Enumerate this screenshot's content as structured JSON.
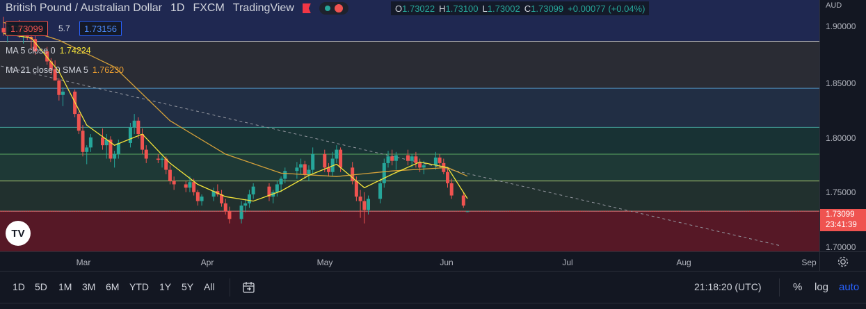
{
  "header": {
    "symbol": "British Pound / Australian Dollar",
    "interval": "1D",
    "exchange": "FXCM",
    "source": "TradingView",
    "flag_icon": "flag-icon"
  },
  "ohlc": {
    "open_label": "O",
    "open": "1.73022",
    "high_label": "H",
    "high": "1.73100",
    "low_label": "L",
    "low": "1.73002",
    "close_label": "C",
    "close": "1.73099",
    "change": "+0.00077 (+0.04%)"
  },
  "trade": {
    "sell": "1.73099",
    "spread": "5.7",
    "buy": "1.73156"
  },
  "indicators": {
    "ma5_label": "MA 5 close 0",
    "ma5_value": "1.74224",
    "ma21_label": "MA 21 close 0 SMA 5",
    "ma21_value": "1.76230"
  },
  "price_axis": {
    "unit": "AUD",
    "ticks": [
      "1.90000",
      "1.85000",
      "1.80000",
      "1.75000",
      "1.70000"
    ],
    "last_price": "1.73099",
    "countdown": "23:41:39"
  },
  "time_axis": {
    "ticks": [
      "Mar",
      "Apr",
      "May",
      "Jun",
      "Jul",
      "Aug",
      "Sep"
    ]
  },
  "bottom_bar": {
    "ranges": [
      "1D",
      "5D",
      "1M",
      "3M",
      "6M",
      "YTD",
      "1Y",
      "5Y",
      "All"
    ],
    "clock": "21:18:20 (UTC)",
    "percent": "%",
    "log": "log",
    "auto": "auto"
  },
  "logo": "TV",
  "colors": {
    "up": "#26a69a",
    "down": "#ef5350",
    "ma5": "#f5e53a",
    "ma21": "#d4a03a",
    "accent": "#2962ff"
  },
  "chart_data": {
    "type": "candlestick",
    "ylim": [
      1.695,
      1.92
    ],
    "x_range": [
      "2022-02-10",
      "2022-09-02"
    ],
    "horizontal_levels": [
      1.883,
      1.841,
      1.806,
      1.782,
      1.758,
      1.731
    ],
    "trendline": {
      "from": [
        "2022-02-08",
        1.862
      ],
      "to": [
        "2022-08-25",
        1.7
      ]
    },
    "candles": [
      [
        "2022-02-10",
        1.895,
        1.905,
        1.888,
        1.891
      ],
      [
        "2022-02-11",
        1.891,
        1.9,
        1.882,
        1.896
      ],
      [
        "2022-02-14",
        1.896,
        1.902,
        1.886,
        1.889
      ],
      [
        "2022-02-15",
        1.889,
        1.895,
        1.881,
        1.892
      ],
      [
        "2022-02-16",
        1.892,
        1.898,
        1.884,
        1.887
      ],
      [
        "2022-02-17",
        1.887,
        1.891,
        1.876,
        1.885
      ],
      [
        "2022-02-18",
        1.885,
        1.888,
        1.871,
        1.874
      ],
      [
        "2022-02-21",
        1.874,
        1.878,
        1.862,
        1.865
      ],
      [
        "2022-02-22",
        1.865,
        1.868,
        1.853,
        1.858
      ],
      [
        "2022-02-23",
        1.858,
        1.866,
        1.85,
        1.848
      ],
      [
        "2022-02-24",
        1.848,
        1.85,
        1.83,
        1.835
      ],
      [
        "2022-02-25",
        1.835,
        1.842,
        1.825,
        1.838
      ],
      [
        "2022-02-28",
        1.838,
        1.84,
        1.815,
        1.818
      ],
      [
        "2022-03-01",
        1.818,
        1.82,
        1.8,
        1.803
      ],
      [
        "2022-03-02",
        1.803,
        1.808,
        1.78,
        1.784
      ],
      [
        "2022-03-03",
        1.784,
        1.79,
        1.773,
        1.788
      ],
      [
        "2022-03-04",
        1.788,
        1.8,
        1.784,
        1.797
      ],
      [
        "2022-03-07",
        1.797,
        1.805,
        1.786,
        1.79
      ],
      [
        "2022-03-08",
        1.79,
        1.8,
        1.778,
        1.795
      ],
      [
        "2022-03-09",
        1.795,
        1.798,
        1.775,
        1.778
      ],
      [
        "2022-03-10",
        1.778,
        1.785,
        1.77,
        1.782
      ],
      [
        "2022-03-11",
        1.782,
        1.795,
        1.778,
        1.792
      ],
      [
        "2022-03-14",
        1.792,
        1.81,
        1.788,
        1.806
      ],
      [
        "2022-03-15",
        1.806,
        1.818,
        1.8,
        1.812
      ],
      [
        "2022-03-16",
        1.812,
        1.815,
        1.796,
        1.8
      ],
      [
        "2022-03-17",
        1.8,
        1.805,
        1.782,
        1.786
      ],
      [
        "2022-03-18",
        1.786,
        1.79,
        1.774,
        1.778
      ],
      [
        "2022-03-21",
        1.778,
        1.782,
        1.774,
        1.777
      ],
      [
        "2022-03-22",
        1.777,
        1.78,
        1.77,
        1.778
      ],
      [
        "2022-03-23",
        1.778,
        1.78,
        1.764,
        1.768
      ],
      [
        "2022-03-24",
        1.768,
        1.772,
        1.755,
        1.758
      ],
      [
        "2022-03-25",
        1.758,
        1.762,
        1.75,
        1.755
      ],
      [
        "2022-03-28",
        1.755,
        1.758,
        1.748,
        1.752
      ],
      [
        "2022-03-29",
        1.752,
        1.762,
        1.748,
        1.757
      ],
      [
        "2022-03-30",
        1.757,
        1.76,
        1.745,
        1.748
      ],
      [
        "2022-03-31",
        1.748,
        1.75,
        1.736,
        1.74
      ],
      [
        "2022-04-01",
        1.74,
        1.746,
        1.736,
        1.744
      ],
      [
        "2022-04-04",
        1.744,
        1.752,
        1.74,
        1.749
      ],
      [
        "2022-04-05",
        1.749,
        1.755,
        1.744,
        1.746
      ],
      [
        "2022-04-06",
        1.746,
        1.75,
        1.735,
        1.738
      ],
      [
        "2022-04-07",
        1.738,
        1.742,
        1.728,
        1.731
      ],
      [
        "2022-04-08",
        1.731,
        1.735,
        1.72,
        1.724
      ],
      [
        "2022-04-11",
        1.724,
        1.74,
        1.72,
        1.736
      ],
      [
        "2022-04-12",
        1.736,
        1.742,
        1.73,
        1.738
      ],
      [
        "2022-04-13",
        1.738,
        1.75,
        1.734,
        1.746
      ],
      [
        "2022-04-14",
        1.746,
        1.756,
        1.742,
        1.753
      ],
      [
        "2022-04-18",
        1.753,
        1.756,
        1.74,
        1.744
      ],
      [
        "2022-04-19",
        1.744,
        1.75,
        1.738,
        1.748
      ],
      [
        "2022-04-20",
        1.748,
        1.758,
        1.744,
        1.755
      ],
      [
        "2022-04-21",
        1.755,
        1.762,
        1.748,
        1.76
      ],
      [
        "2022-04-22",
        1.76,
        1.77,
        1.756,
        1.767
      ],
      [
        "2022-04-25",
        1.767,
        1.775,
        1.76,
        1.77
      ],
      [
        "2022-04-26",
        1.77,
        1.778,
        1.764,
        1.773
      ],
      [
        "2022-04-27",
        1.773,
        1.776,
        1.76,
        1.764
      ],
      [
        "2022-04-28",
        1.764,
        1.772,
        1.758,
        1.768
      ],
      [
        "2022-04-29",
        1.768,
        1.788,
        1.764,
        1.782
      ],
      [
        "2022-05-02",
        1.782,
        1.786,
        1.766,
        1.77
      ],
      [
        "2022-05-03",
        1.77,
        1.774,
        1.762,
        1.766
      ],
      [
        "2022-05-04",
        1.766,
        1.784,
        1.762,
        1.778
      ],
      [
        "2022-05-05",
        1.778,
        1.79,
        1.774,
        1.786
      ],
      [
        "2022-05-06",
        1.786,
        1.788,
        1.766,
        1.77
      ],
      [
        "2022-05-09",
        1.77,
        1.775,
        1.755,
        1.758
      ],
      [
        "2022-05-10",
        1.758,
        1.762,
        1.74,
        1.744
      ],
      [
        "2022-05-11",
        1.744,
        1.75,
        1.725,
        1.74
      ],
      [
        "2022-05-12",
        1.74,
        1.748,
        1.72,
        1.732
      ],
      [
        "2022-05-13",
        1.732,
        1.745,
        1.728,
        1.742
      ],
      [
        "2022-05-16",
        1.742,
        1.76,
        1.738,
        1.756
      ],
      [
        "2022-05-17",
        1.756,
        1.778,
        1.752,
        1.774
      ],
      [
        "2022-05-18",
        1.774,
        1.785,
        1.77,
        1.78
      ],
      [
        "2022-05-19",
        1.78,
        1.786,
        1.772,
        1.776
      ],
      [
        "2022-05-20",
        1.776,
        1.784,
        1.768,
        1.781
      ],
      [
        "2022-05-23",
        1.781,
        1.786,
        1.772,
        1.776
      ],
      [
        "2022-05-24",
        1.776,
        1.782,
        1.77,
        1.78
      ],
      [
        "2022-05-25",
        1.78,
        1.784,
        1.77,
        1.774
      ],
      [
        "2022-05-26",
        1.774,
        1.778,
        1.766,
        1.77
      ],
      [
        "2022-05-27",
        1.77,
        1.776,
        1.764,
        1.772
      ],
      [
        "2022-05-30",
        1.772,
        1.784,
        1.768,
        1.779
      ],
      [
        "2022-05-31",
        1.779,
        1.782,
        1.77,
        1.774
      ],
      [
        "2022-06-01",
        1.774,
        1.778,
        1.764,
        1.766
      ],
      [
        "2022-06-02",
        1.766,
        1.77,
        1.752,
        1.756
      ],
      [
        "2022-06-03",
        1.756,
        1.76,
        1.742,
        1.745
      ],
      [
        "2022-06-06",
        1.745,
        1.748,
        1.734,
        1.736
      ],
      [
        "2022-06-07",
        1.73022,
        1.731,
        1.73002,
        1.73099
      ]
    ],
    "ma5": [
      [
        "2022-02-10",
        1.89
      ],
      [
        "2022-02-17",
        1.886
      ],
      [
        "2022-02-24",
        1.856
      ],
      [
        "2022-03-03",
        1.808
      ],
      [
        "2022-03-10",
        1.79
      ],
      [
        "2022-03-17",
        1.8
      ],
      [
        "2022-03-24",
        1.774
      ],
      [
        "2022-03-31",
        1.755
      ],
      [
        "2022-04-07",
        1.744
      ],
      [
        "2022-04-14",
        1.74
      ],
      [
        "2022-04-21",
        1.749
      ],
      [
        "2022-04-28",
        1.763
      ],
      [
        "2022-05-05",
        1.773
      ],
      [
        "2022-05-12",
        1.752
      ],
      [
        "2022-05-19",
        1.764
      ],
      [
        "2022-05-26",
        1.775
      ],
      [
        "2022-06-02",
        1.77
      ],
      [
        "2022-06-07",
        1.74224
      ]
    ],
    "ma21": [
      [
        "2022-02-10",
        1.9
      ],
      [
        "2022-02-24",
        1.884
      ],
      [
        "2022-03-10",
        1.86
      ],
      [
        "2022-03-24",
        1.812
      ],
      [
        "2022-04-07",
        1.782
      ],
      [
        "2022-04-21",
        1.765
      ],
      [
        "2022-05-05",
        1.762
      ],
      [
        "2022-05-19",
        1.767
      ],
      [
        "2022-06-02",
        1.77
      ],
      [
        "2022-06-07",
        1.7623
      ]
    ]
  }
}
